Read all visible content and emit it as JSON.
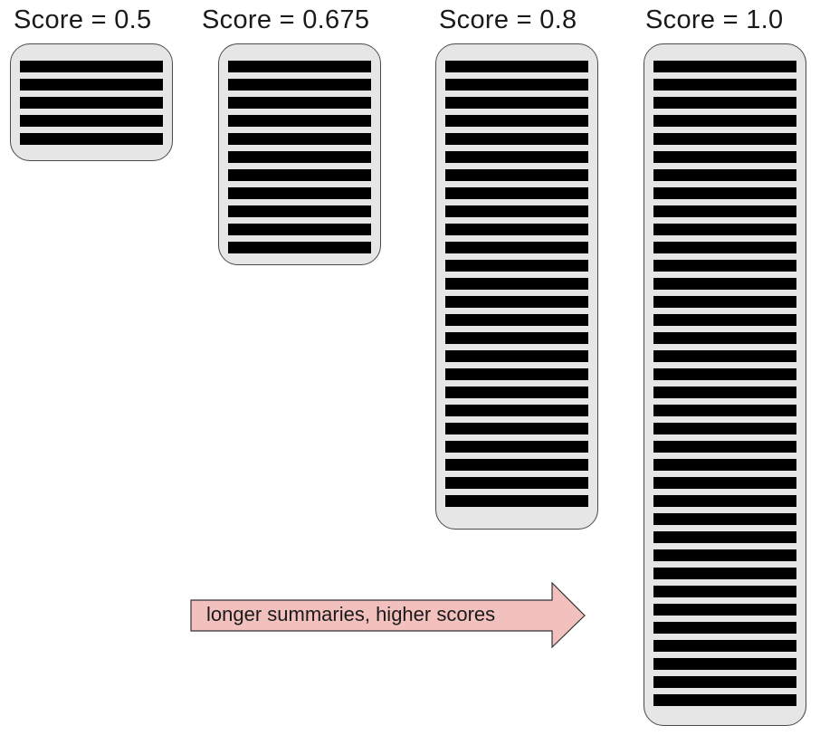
{
  "panels": [
    {
      "label": "Score = 0.5",
      "lines": 5
    },
    {
      "label": "Score = 0.675",
      "lines": 11
    },
    {
      "label": "Score = 0.8",
      "lines": 25
    },
    {
      "label": "Score = 1.0",
      "lines": 36
    }
  ],
  "arrow": {
    "label": "longer summaries, higher scores",
    "fill": "#f2c1be",
    "stroke": "#333333"
  },
  "colors": {
    "card_fill": "#e6e6e6",
    "card_border": "#4a4a4a",
    "line_fill": "#000000"
  }
}
